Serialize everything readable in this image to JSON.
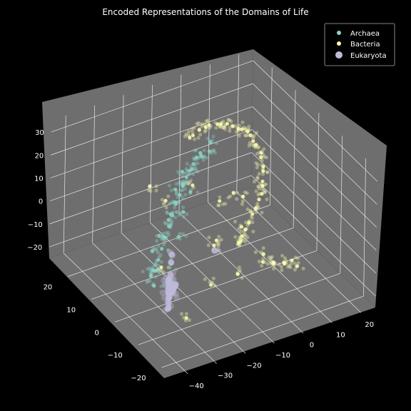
{
  "chart_data": {
    "type": "scatter",
    "projection": "3d",
    "title": "Encoded Representations of the Domains of Life",
    "xlabel": "",
    "ylabel": "",
    "zlabel": "",
    "xlim": [
      -45,
      25
    ],
    "ylim": [
      -25,
      28
    ],
    "zlim": [
      -25,
      35
    ],
    "x_ticks": [
      -40,
      -30,
      -20,
      -10,
      0,
      10,
      20
    ],
    "y_ticks": [
      -20,
      -10,
      0,
      10,
      20
    ],
    "z_ticks": [
      -20,
      -10,
      0,
      10,
      20,
      30
    ],
    "grid": true,
    "legend_position": "top-right",
    "background": "#000000",
    "pane_color": "#6e6e6e",
    "series": [
      {
        "name": "Archaea",
        "color": "#8dd3c7",
        "marker_size": "small",
        "description_points": [
          [
            -38,
            -8,
            2
          ],
          [
            -36,
            -7,
            5
          ],
          [
            -34,
            -6,
            8
          ],
          [
            -32,
            -5,
            11
          ],
          [
            -30,
            -4,
            14
          ],
          [
            -28,
            -3,
            17
          ],
          [
            -26,
            -2,
            20
          ],
          [
            -24,
            -1,
            22
          ],
          [
            -22,
            0,
            24
          ],
          [
            -20,
            1,
            26
          ],
          [
            -18,
            2,
            27
          ],
          [
            -16,
            3,
            28
          ],
          [
            -14,
            4,
            29
          ],
          [
            -12,
            5,
            29
          ],
          [
            -37,
            -6,
            0
          ],
          [
            -35,
            -5,
            -2
          ],
          [
            -33,
            -9,
            4
          ],
          [
            -31,
            -3,
            9
          ],
          [
            -29,
            -7,
            12
          ],
          [
            -27,
            -1,
            15
          ],
          [
            -25,
            -4,
            18
          ],
          [
            -23,
            2,
            21
          ],
          [
            -21,
            -2,
            23
          ],
          [
            -19,
            4,
            25
          ],
          [
            -39,
            -9,
            -3
          ],
          [
            -36,
            -4,
            -5
          ],
          [
            -34,
            -2,
            3
          ],
          [
            -30,
            0,
            6
          ],
          [
            -26,
            1,
            10
          ],
          [
            -22,
            3,
            14
          ],
          [
            -18,
            5,
            18
          ],
          [
            -14,
            6,
            22
          ],
          [
            -10,
            7,
            25
          ],
          [
            -8,
            6,
            27
          ],
          [
            -6,
            8,
            28
          ]
        ]
      },
      {
        "name": "Bacteria",
        "color": "#ffffb3",
        "marker_size": "small",
        "description_points": [
          [
            -10,
            12,
            28
          ],
          [
            -5,
            14,
            27
          ],
          [
            0,
            16,
            25
          ],
          [
            5,
            17,
            22
          ],
          [
            10,
            18,
            18
          ],
          [
            14,
            19,
            14
          ],
          [
            17,
            19,
            10
          ],
          [
            19,
            19,
            5
          ],
          [
            20,
            18,
            0
          ],
          [
            20,
            17,
            -5
          ],
          [
            19,
            16,
            -10
          ],
          [
            17,
            15,
            -14
          ],
          [
            14,
            14,
            -18
          ],
          [
            10,
            12,
            -21
          ],
          [
            6,
            10,
            -23
          ],
          [
            -8,
            13,
            27
          ],
          [
            -2,
            15,
            26
          ],
          [
            3,
            16,
            24
          ],
          [
            8,
            18,
            20
          ],
          [
            12,
            18,
            16
          ],
          [
            16,
            19,
            12
          ],
          [
            18,
            19,
            7
          ],
          [
            20,
            18,
            2
          ],
          [
            20,
            17,
            -3
          ],
          [
            19,
            16,
            -8
          ],
          [
            18,
            15,
            -12
          ],
          [
            15,
            14,
            -16
          ],
          [
            12,
            13,
            -20
          ],
          [
            8,
            11,
            -22
          ],
          [
            -2,
            -10,
            -8
          ],
          [
            0,
            -12,
            -7
          ],
          [
            2,
            -14,
            -6
          ],
          [
            4,
            -15,
            -5
          ],
          [
            1,
            -11,
            -9
          ],
          [
            3,
            -13,
            -8
          ],
          [
            -1,
            -9,
            -6
          ],
          [
            5,
            -16,
            -7
          ],
          [
            -15,
            -5,
            0
          ],
          [
            -10,
            0,
            -5
          ],
          [
            -5,
            5,
            5
          ],
          [
            -20,
            -10,
            -10
          ],
          [
            -12,
            8,
            12
          ],
          [
            -25,
            5,
            -15
          ],
          [
            -8,
            -8,
            8
          ],
          [
            0,
            2,
            -12
          ],
          [
            -18,
            12,
            4
          ],
          [
            -30,
            -12,
            -18
          ],
          [
            -6,
            -2,
            16
          ],
          [
            4,
            6,
            2
          ],
          [
            -14,
            -14,
            -4
          ],
          [
            -22,
            14,
            10
          ]
        ]
      },
      {
        "name": "Eukaryota",
        "color": "#bebada",
        "marker_size": "large",
        "description_points": [
          [
            -38,
            -14,
            -2
          ],
          [
            -38,
            -14,
            0
          ],
          [
            -38,
            -14,
            2
          ],
          [
            -38,
            -14,
            -4
          ],
          [
            -38,
            -14,
            -6
          ],
          [
            -38,
            -14,
            -8
          ],
          [
            -38,
            -14,
            4
          ],
          [
            -37,
            -13,
            -1
          ],
          [
            -37,
            -13,
            1
          ],
          [
            -37,
            -13,
            -3
          ],
          [
            -37,
            -13,
            -5
          ],
          [
            -37,
            -13,
            3
          ],
          [
            -39,
            -15,
            -7
          ],
          [
            -39,
            -15,
            5
          ],
          [
            -36,
            -12,
            0
          ],
          [
            -36,
            -12,
            -2
          ],
          [
            -36,
            -12,
            -4
          ],
          [
            -35,
            -11,
            2
          ],
          [
            -35,
            -11,
            -6
          ],
          [
            -34,
            -10,
            6
          ],
          [
            -33,
            -9,
            8
          ],
          [
            -32,
            -8,
            -10
          ],
          [
            -30,
            -6,
            -12
          ],
          [
            -28,
            -4,
            -14
          ],
          [
            -26,
            -2,
            -16
          ],
          [
            -24,
            0,
            -18
          ],
          [
            -4,
            8,
            -20
          ]
        ]
      }
    ]
  }
}
